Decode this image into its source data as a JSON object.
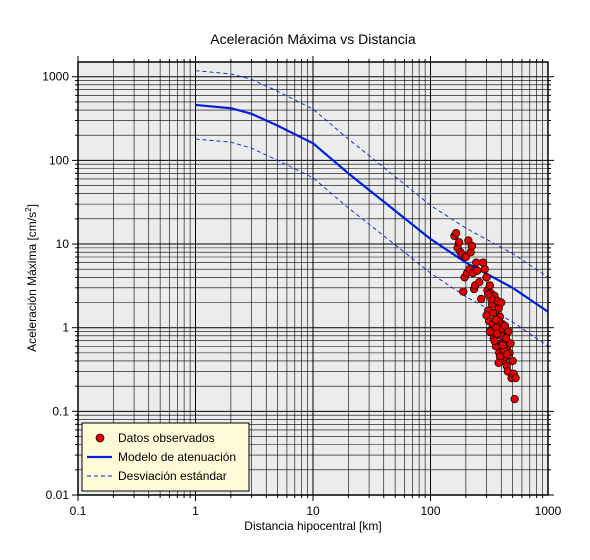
{
  "chart_data": {
    "type": "scatter",
    "title": "Aceleración Máxima vs Distancia",
    "xlabel": "Distancia hipocentral [km]",
    "ylabel_main": "Aceleración Máxima [cm/s",
    "ylabel_sup": "2",
    "ylabel_end": "]",
    "x_scale": "log",
    "y_scale": "log",
    "xlim": [
      0.1,
      1000
    ],
    "ylim": [
      0.01,
      1500
    ],
    "grid": true,
    "x_ticks": [
      {
        "value": 0.1,
        "label": "0.1"
      },
      {
        "value": 1,
        "label": "1"
      },
      {
        "value": 10,
        "label": "10"
      },
      {
        "value": 100,
        "label": "100"
      },
      {
        "value": 1000,
        "label": "1000"
      }
    ],
    "y_ticks": [
      {
        "value": 0.01,
        "label": "0.01"
      },
      {
        "value": 0.1,
        "label": "0.1"
      },
      {
        "value": 1,
        "label": "1"
      },
      {
        "value": 10,
        "label": "10"
      },
      {
        "value": 100,
        "label": "100"
      },
      {
        "value": 1000,
        "label": "1000"
      }
    ],
    "legend": {
      "placement": "bottom-left",
      "entries": [
        {
          "label": "Datos observados",
          "marker": "circle",
          "color": "#e00000"
        },
        {
          "label": "Modelo de atenuación",
          "marker": "line",
          "color": "#0020e0"
        },
        {
          "label": "Desviación estándar",
          "marker": "dashed",
          "color": "#0020e0"
        }
      ]
    },
    "series": [
      {
        "name": "Modelo de atenuación",
        "kind": "line",
        "color": "#0020e0",
        "x": [
          1,
          2,
          3,
          5,
          10,
          20,
          50,
          100,
          200,
          500,
          1000
        ],
        "y": [
          460,
          420,
          360,
          260,
          160,
          70,
          25,
          11.5,
          6,
          3,
          1.55
        ]
      },
      {
        "name": "Desviación estándar",
        "kind": "dashed",
        "color": "#0020e0",
        "x": [
          1,
          2,
          3,
          5,
          10,
          20,
          50,
          100,
          200,
          500,
          1000
        ],
        "y": [
          1180,
          1080,
          930,
          670,
          410,
          180,
          64,
          29,
          15.5,
          7.7,
          4
        ]
      },
      {
        "name": "Desviación estándar",
        "kind": "dashed",
        "color": "#0020e0",
        "x": [
          1,
          2,
          3,
          5,
          10,
          20,
          50,
          100,
          200,
          500,
          1000
        ],
        "y": [
          180,
          165,
          140,
          100,
          62,
          27,
          9.8,
          4.5,
          2.35,
          1.17,
          0.6
        ]
      },
      {
        "name": "Datos observados",
        "kind": "points",
        "color": "#e00000",
        "x": [
          160,
          165,
          170,
          175,
          180,
          185,
          190,
          195,
          200,
          205,
          210,
          215,
          220,
          225,
          230,
          235,
          240,
          245,
          250,
          260,
          270,
          280,
          290,
          300,
          305,
          310,
          315,
          320,
          325,
          330,
          335,
          340,
          345,
          350,
          355,
          360,
          365,
          370,
          375,
          380,
          385,
          390,
          395,
          400,
          405,
          410,
          415,
          420,
          425,
          430,
          435,
          440,
          445,
          450,
          455,
          460,
          470,
          480,
          490,
          500,
          510,
          520,
          530,
          300,
          320,
          340,
          360,
          380,
          400,
          420,
          440,
          350,
          370,
          390,
          410,
          330,
          310,
          450,
          360,
          380
        ],
        "y": [
          12.5,
          13.5,
          9,
          10.5,
          8,
          7.5,
          2.7,
          4,
          7,
          4.5,
          11,
          5,
          8,
          9.5,
          4.5,
          2.9,
          3.2,
          6,
          4.8,
          3.5,
          2.2,
          6,
          5,
          4,
          2.8,
          1.6,
          1.2,
          3.2,
          2.6,
          0.95,
          1.9,
          1.1,
          0.75,
          2.4,
          1.5,
          0.6,
          1.3,
          2.1,
          0.85,
          1.7,
          0.5,
          1.35,
          0.95,
          2.0,
          0.65,
          1.1,
          0.4,
          0.55,
          0.8,
          1.05,
          0.45,
          0.7,
          0.35,
          0.6,
          0.3,
          0.9,
          0.5,
          0.65,
          0.25,
          0.4,
          0.28,
          0.14,
          0.25,
          1.4,
          0.9,
          1.5,
          1.0,
          1.2,
          0.8,
          0.55,
          0.75,
          0.7,
          0.85,
          0.45,
          0.62,
          2.2,
          2.5,
          0.48,
          1.25,
          0.38
        ]
      }
    ]
  }
}
